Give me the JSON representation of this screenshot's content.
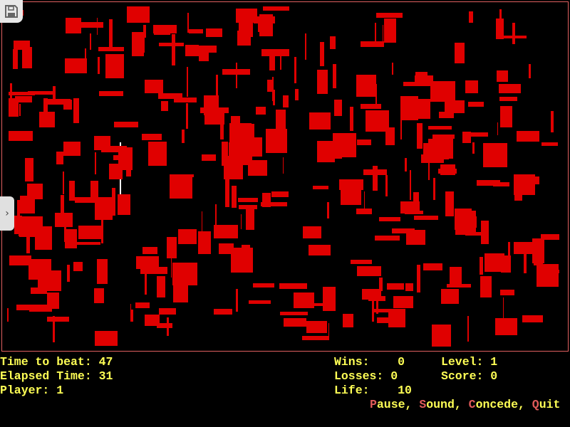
{
  "colors": {
    "block": "#e00000",
    "hud_text": "#ffff55",
    "hotkey": "#e05a5a",
    "border": "#e06060"
  },
  "hud": {
    "time_to_beat": "Time to beat: 47",
    "elapsed_time": "Elapsed Time: 31",
    "player": "Player: 1",
    "wins": "Wins:    0",
    "losses": "Losses: 0",
    "life": "Life:    10",
    "level": "Level: 1",
    "score": "Score: 0"
  },
  "menu": [
    {
      "key": "P",
      "rest": "ause",
      "sep": ", "
    },
    {
      "key": "S",
      "rest": "ound",
      "sep": ", "
    },
    {
      "key": "C",
      "rest": "oncede",
      "sep": ", "
    },
    {
      "key": "Q",
      "rest": "uit",
      "sep": ""
    }
  ],
  "icons": {
    "save": "floppy-disk-icon",
    "tab": "chevron-right-icon"
  }
}
